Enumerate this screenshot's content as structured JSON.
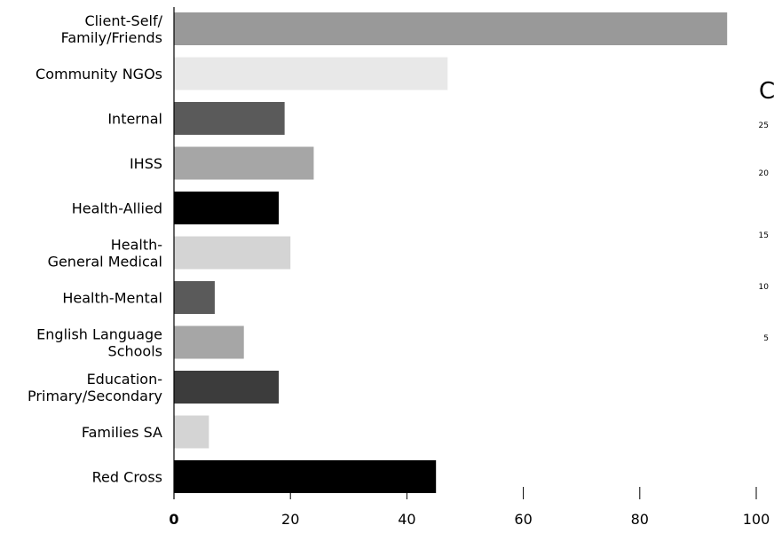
{
  "chart_data": {
    "type": "bar",
    "orientation": "horizontal",
    "title": "",
    "xlabel": "",
    "ylabel": "",
    "categories": [
      [
        "Client-Self/",
        "Family/Friends"
      ],
      [
        "Community NGOs"
      ],
      [
        "Internal"
      ],
      [
        "IHSS"
      ],
      [
        "Health-Allied"
      ],
      [
        "Health-",
        "General Medical"
      ],
      [
        "Health-Mental"
      ],
      [
        "English Language",
        "Schools"
      ],
      [
        "Education-",
        "Primary/Secondary"
      ],
      [
        "Families SA"
      ],
      [
        "Red Cross"
      ]
    ],
    "values": [
      95,
      47,
      19,
      24,
      18,
      20,
      7,
      12,
      18,
      6,
      45
    ],
    "colors": [
      "#999999",
      "#e8e8e8",
      "#5a5a5a",
      "#a6a6a6",
      "#000000",
      "#d4d4d4",
      "#5a5a5a",
      "#a6a6a6",
      "#3c3c3c",
      "#d4d4d4",
      "#000000"
    ],
    "xlim": [
      0,
      100
    ],
    "xticks": [
      0,
      20,
      40,
      60,
      80,
      100
    ],
    "grid": false
  },
  "side_chart_partial": {
    "title_fragment": "C",
    "yticks": [
      "25",
      "20",
      "15",
      "10",
      "5"
    ]
  }
}
